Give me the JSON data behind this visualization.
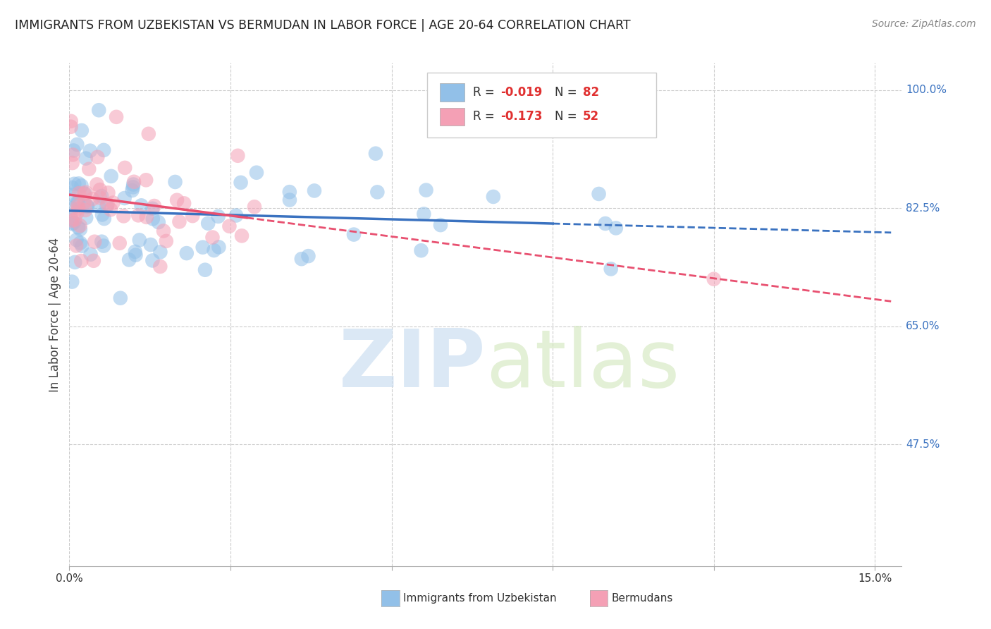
{
  "title": "IMMIGRANTS FROM UZBEKISTAN VS BERMUDAN IN LABOR FORCE | AGE 20-64 CORRELATION CHART",
  "source": "Source: ZipAtlas.com",
  "ylabel": "In Labor Force | Age 20-64",
  "xlim": [
    0.0,
    0.155
  ],
  "ylim": [
    0.295,
    1.04
  ],
  "xticks": [
    0.0,
    0.03,
    0.06,
    0.09,
    0.12,
    0.15
  ],
  "xticklabels": [
    "0.0%",
    "",
    "",
    "",
    "",
    "15.0%"
  ],
  "ytick_positions": [
    0.475,
    0.65,
    0.825,
    1.0
  ],
  "ytick_labels": [
    "47.5%",
    "65.0%",
    "82.5%",
    "100.0%"
  ],
  "color_blue": "#92C0E8",
  "color_pink": "#F4A0B5",
  "trendline_blue_color": "#3A72C0",
  "trendline_pink_color": "#E85070",
  "r_color": "#E03030",
  "n_color": "#E03030",
  "legend_r1": "-0.019",
  "legend_n1": "82",
  "legend_r2": "-0.173",
  "legend_n2": "52",
  "blue_label": "Immigrants from Uzbekistan",
  "pink_label": "Bermudans"
}
